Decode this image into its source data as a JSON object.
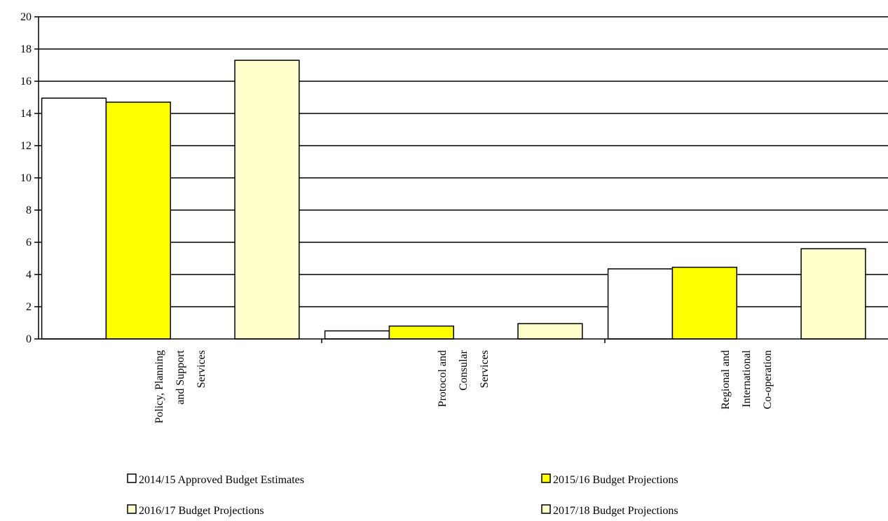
{
  "chart_data": {
    "type": "bar",
    "title": "",
    "xlabel": "",
    "ylabel": "",
    "ylim": [
      0,
      20
    ],
    "yticks": [
      0,
      2,
      4,
      6,
      8,
      10,
      12,
      14,
      16,
      18,
      20
    ],
    "grid": true,
    "legend_position": "bottom",
    "categories": [
      [
        "Policy, Planning",
        "and Support",
        "Services"
      ],
      [
        "Protocol and",
        "Consular",
        "Services"
      ],
      [
        "Regional and",
        "International",
        "Co-operation"
      ]
    ],
    "series": [
      {
        "name": "2014/15 Approved Budget Estimates",
        "color": "#ffffff",
        "values": [
          14.95,
          0.5,
          4.35
        ]
      },
      {
        "name": "2015/16 Budget Projections",
        "color": "#ffff00",
        "values": [
          14.7,
          0.8,
          4.45
        ]
      },
      {
        "name": "2016/17 Budget Projections",
        "color": "#ffffcc",
        "values": [
          null,
          null,
          null
        ]
      },
      {
        "name": "2017/18 Budget Projections",
        "color": "#ffffcc",
        "values": [
          17.3,
          0.95,
          5.6
        ]
      }
    ]
  }
}
